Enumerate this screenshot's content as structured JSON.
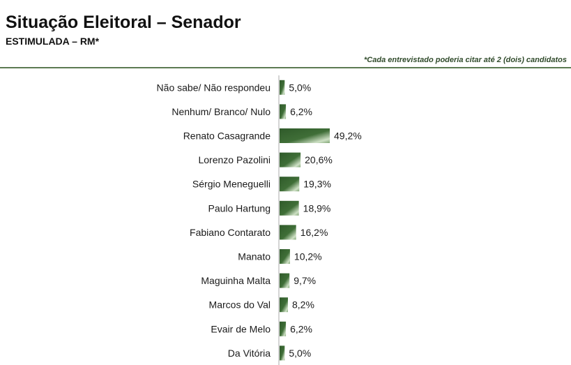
{
  "header": {
    "title": "Situação Eleitoral – Senador",
    "subtitle": "ESTIMULADA – RM*",
    "note": "*Cada entrevistado poderia citar até 2 (dois) candidatos"
  },
  "colors": {
    "bar_dark": "#2f5a2a",
    "bar_light": "#cfe1c6",
    "rule": "#5b7a52"
  },
  "chart_data": {
    "type": "bar",
    "orientation": "horizontal",
    "categories": [
      "Não sabe/ Não respondeu",
      "Nenhum/ Branco/ Nulo",
      "Renato Casagrande",
      "Lorenzo Pazolini",
      "Sérgio Meneguelli",
      "Paulo Hartung",
      "Fabiano Contarato",
      "Manato",
      "Maguinha Malta",
      "Marcos do Val",
      "Evair de Melo",
      "Da Vitória"
    ],
    "values": [
      5.0,
      6.2,
      49.2,
      20.6,
      19.3,
      18.9,
      16.2,
      10.2,
      9.7,
      8.2,
      6.2,
      5.0
    ],
    "value_labels": [
      "5,0%",
      "6,2%",
      "49,2%",
      "20,6%",
      "19,3%",
      "18,9%",
      "16,2%",
      "10,2%",
      "9,7%",
      "8,2%",
      "6,2%",
      "5,0%"
    ],
    "title": "Situação Eleitoral – Senador",
    "subtitle": "ESTIMULADA – RM*",
    "xlabel": "",
    "ylabel": "",
    "xlim": [
      0,
      100
    ],
    "grid": false,
    "legend": "none"
  }
}
